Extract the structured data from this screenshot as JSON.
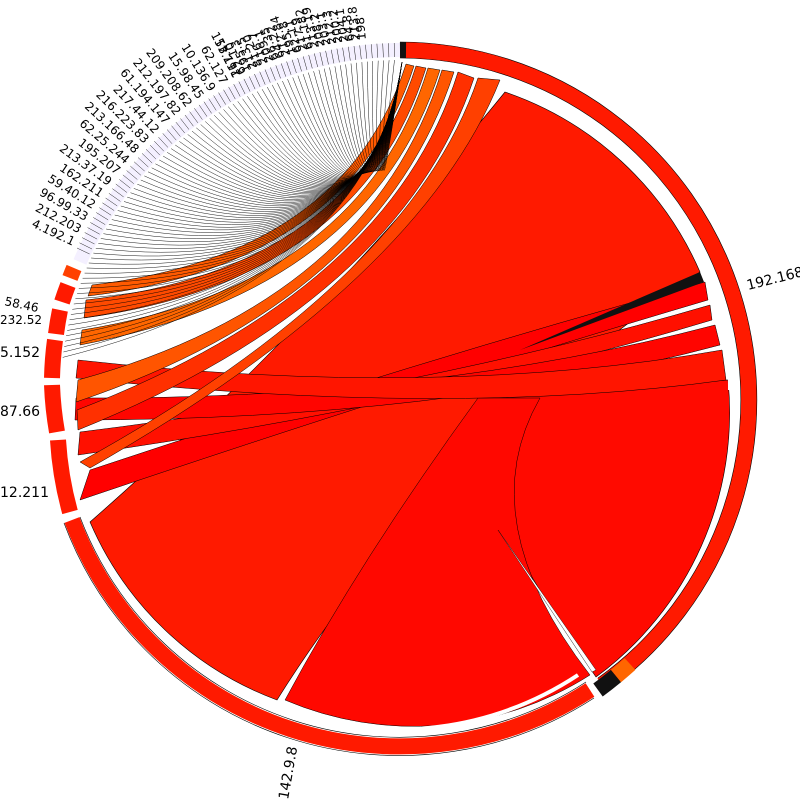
{
  "diagram": {
    "type": "chord",
    "colors": {
      "major": "#ff1a00",
      "secondary": "#ff4000",
      "tertiary": "#ff6600",
      "dark": "#111111",
      "background": "#ffffff"
    },
    "labels": {
      "right": "192.168",
      "bottom": "142.9.8",
      "left_1": "12.211",
      "left_2": "87.66",
      "left_3": "5.152",
      "left_4": "232.52",
      "left_5": "58.46",
      "left_6": "4.192.1",
      "left_7": "212.203",
      "left_8": "96.99.33",
      "left_9": "59.40.12",
      "left_10": "162.211",
      "left_11": "213.37.19",
      "left_12": "195.207",
      "left_13": "62.25.244",
      "left_14": "213.166.48",
      "left_15": "216.223.83",
      "left_16": "217.44.12",
      "left_17": "61.194.147",
      "left_18": "212.197.82",
      "left_19": "209.208.62",
      "left_20": "15.98.45",
      "left_21": "10.136.9",
      "left_22": "62.127",
      "left_23": "153.191",
      "top_1": "198",
      "top_2": "213.8",
      "top_3": "64.8",
      "top_4": "204.1",
      "top_5": "200.2",
      "top_6": "212.3",
      "top_7": "203.1",
      "top_8": "208.2",
      "top_9": "213.19",
      "top_10": "61.182",
      "top_11": "217.9",
      "top_12": "62.11",
      "top_13": "195.8",
      "top_14": "212.84",
      "top_15": "64.22",
      "top_16": "66.35",
      "top_17": "209.1",
      "top_18": "216.7",
      "top_19": "81.20",
      "top_20": "213.5",
      "top_21": "195.3",
      "top_22": "62.10",
      "top_23": "217.41"
    }
  }
}
